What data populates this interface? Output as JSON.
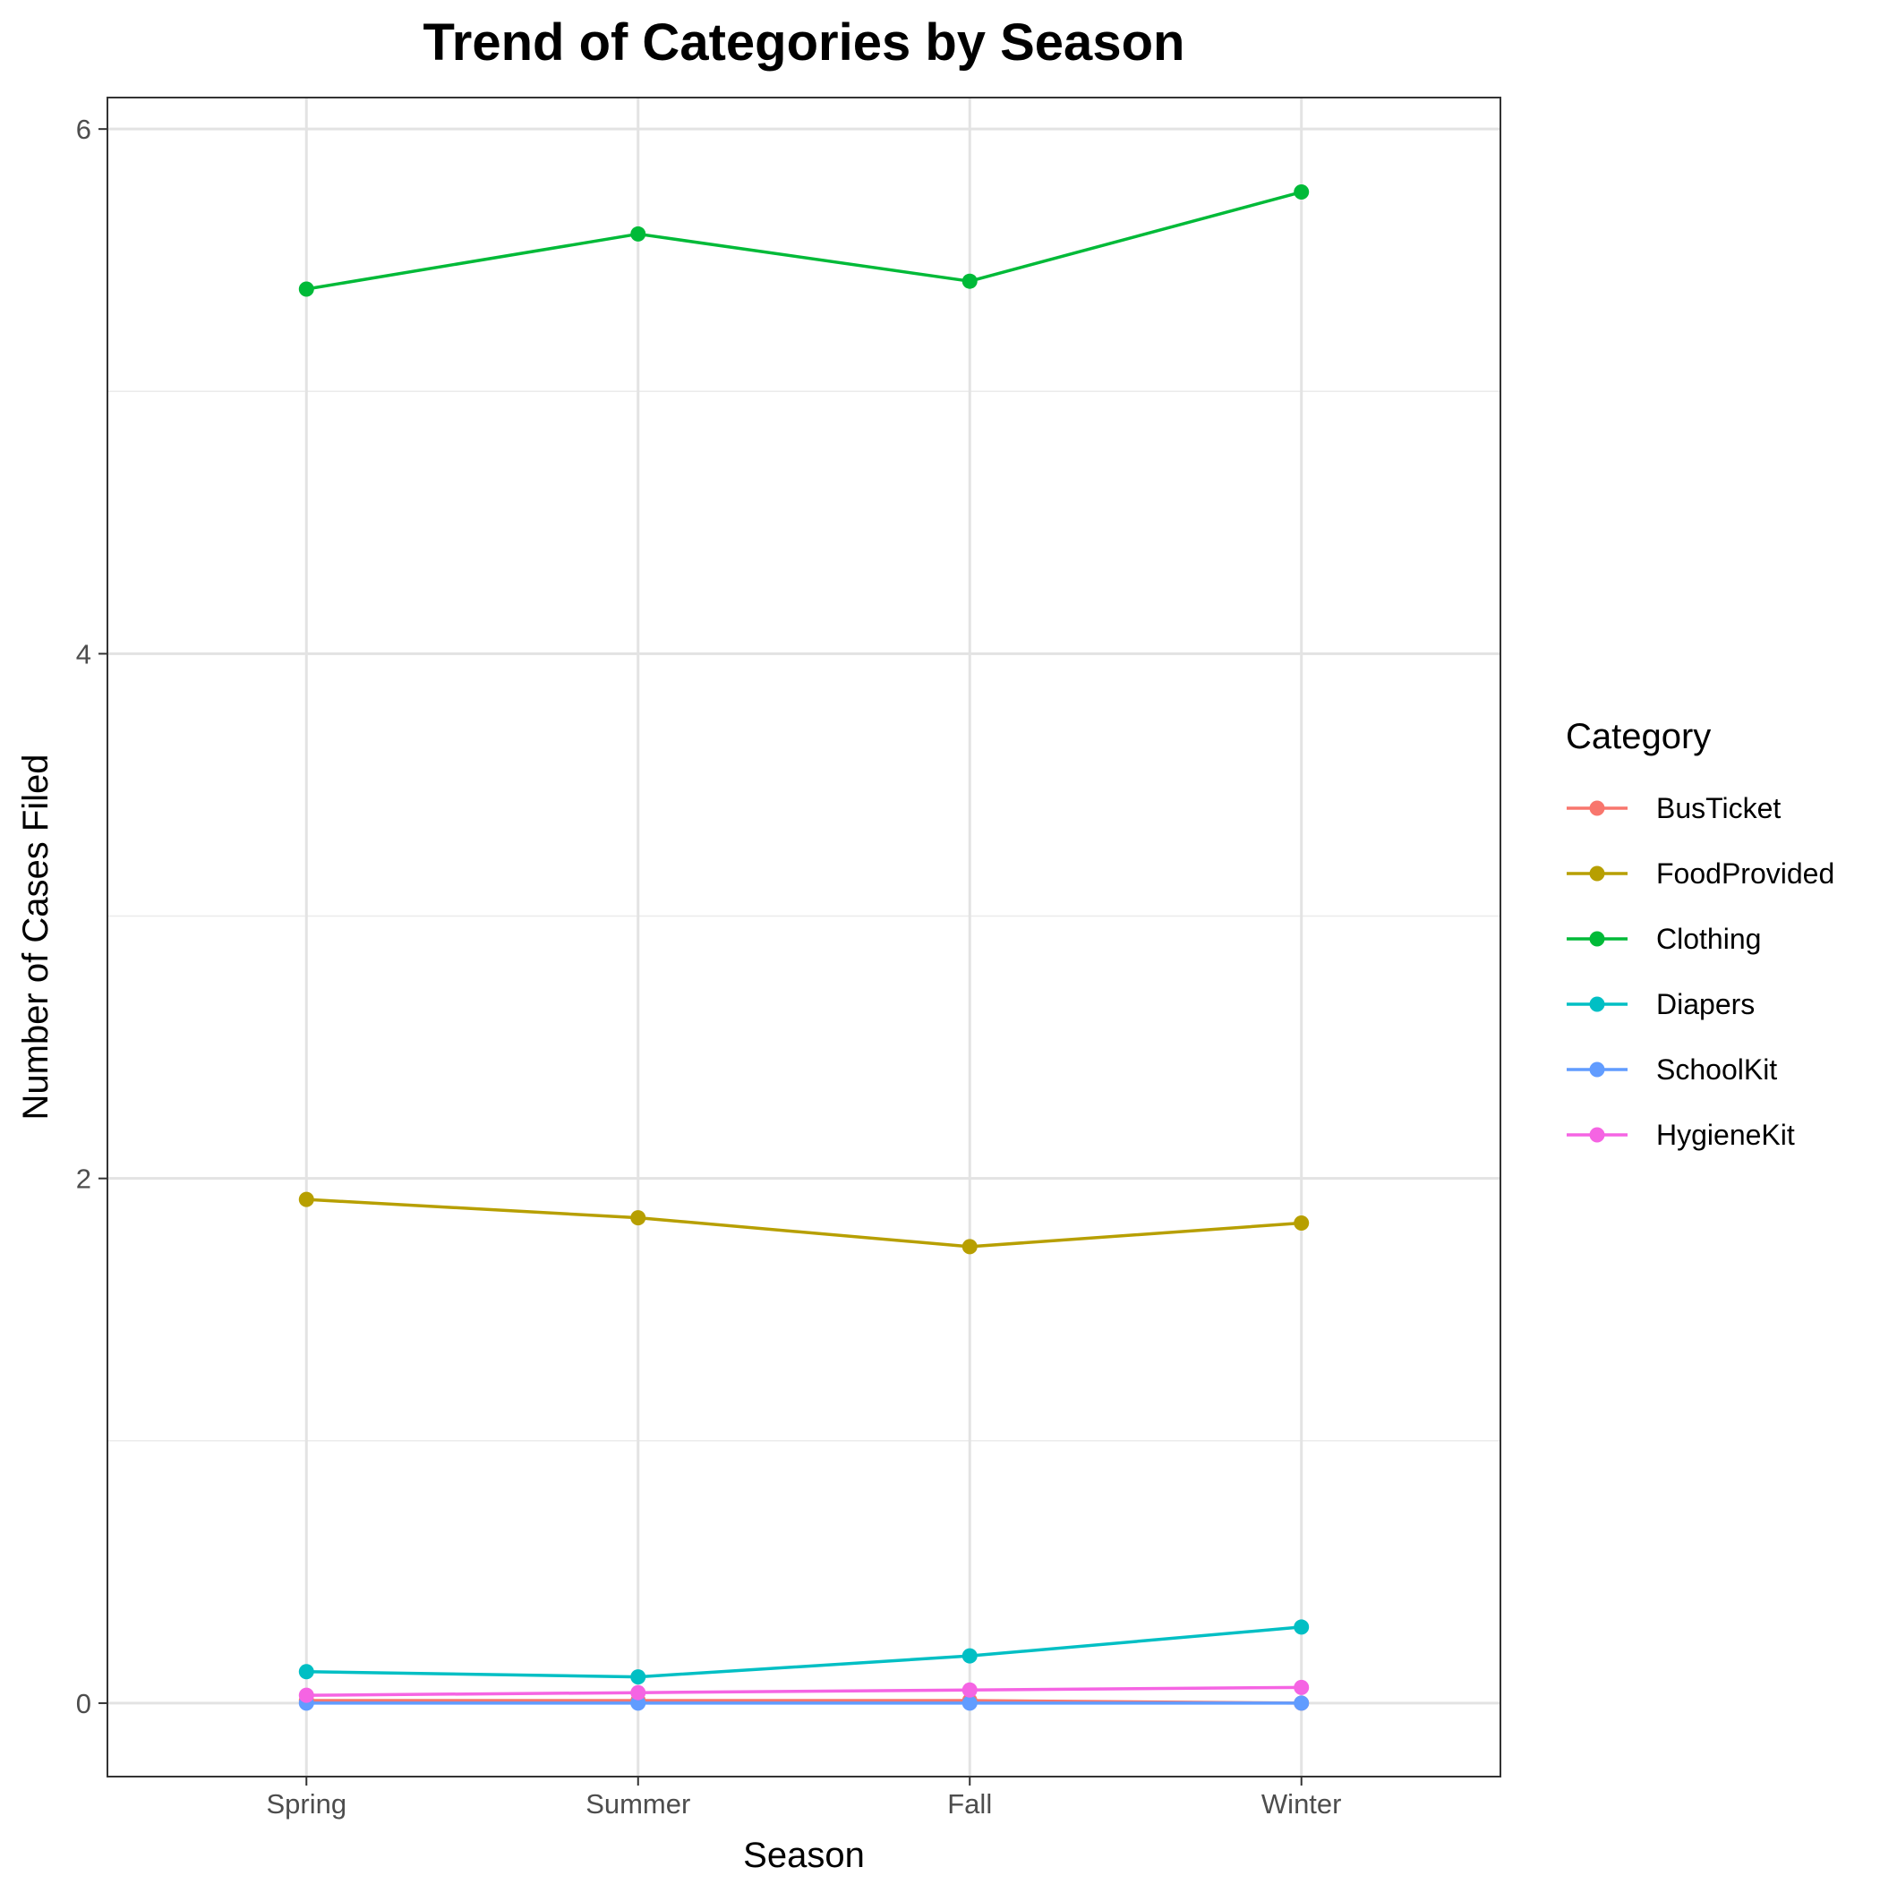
{
  "chart_data": {
    "type": "line",
    "title": "Trend of Categories by Season",
    "xlabel": "Season",
    "ylabel": "Number of Cases Filed",
    "categories": [
      "Spring",
      "Summer",
      "Fall",
      "Winter"
    ],
    "ylim": [
      -0.28,
      6.12
    ],
    "yticks": [
      0,
      2,
      4,
      6
    ],
    "grid": true,
    "legend": {
      "title": "Category",
      "placement": "right"
    },
    "series": [
      {
        "name": "BusTicket",
        "color": "#F8766D",
        "values": [
          0.01,
          0.01,
          0.01,
          0.0
        ]
      },
      {
        "name": "FoodProvided",
        "color": "#B79F00",
        "values": [
          1.92,
          1.85,
          1.74,
          1.83
        ]
      },
      {
        "name": "Clothing",
        "color": "#00BA38",
        "values": [
          5.39,
          5.6,
          5.42,
          5.76
        ]
      },
      {
        "name": "Diapers",
        "color": "#00BFC4",
        "values": [
          0.12,
          0.1,
          0.18,
          0.29
        ]
      },
      {
        "name": "SchoolKit",
        "color": "#619CFF",
        "values": [
          0.0,
          0.0,
          0.0,
          0.0
        ]
      },
      {
        "name": "HygieneKit",
        "color": "#F564E3",
        "values": [
          0.03,
          0.04,
          0.05,
          0.06
        ]
      }
    ]
  }
}
